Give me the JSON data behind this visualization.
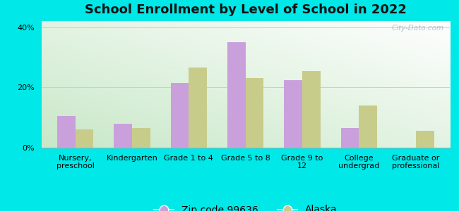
{
  "title": "School Enrollment by Level of School in 2022",
  "categories": [
    "Nursery,\npreschool",
    "Kindergarten",
    "Grade 1 to 4",
    "Grade 5 to 8",
    "Grade 9 to\n12",
    "College\nundergrad",
    "Graduate or\nprofessional"
  ],
  "zip_values": [
    10.5,
    8.0,
    21.5,
    35.0,
    22.5,
    6.5,
    0.0
  ],
  "alaska_values": [
    6.0,
    6.5,
    26.5,
    23.0,
    25.5,
    14.0,
    5.5
  ],
  "zip_color": "#c9a0dc",
  "alaska_color": "#c8cc8a",
  "zip_label": "Zip code 99636",
  "alaska_label": "Alaska",
  "ylim": [
    0,
    42
  ],
  "yticks": [
    0,
    20,
    40
  ],
  "ytick_labels": [
    "0%",
    "20%",
    "40%"
  ],
  "bg_color": "#00e8e8",
  "watermark": "City-Data.com",
  "bar_width": 0.32,
  "title_fontsize": 13,
  "legend_fontsize": 10,
  "tick_fontsize": 8.0,
  "grid_color": "#cccccc"
}
